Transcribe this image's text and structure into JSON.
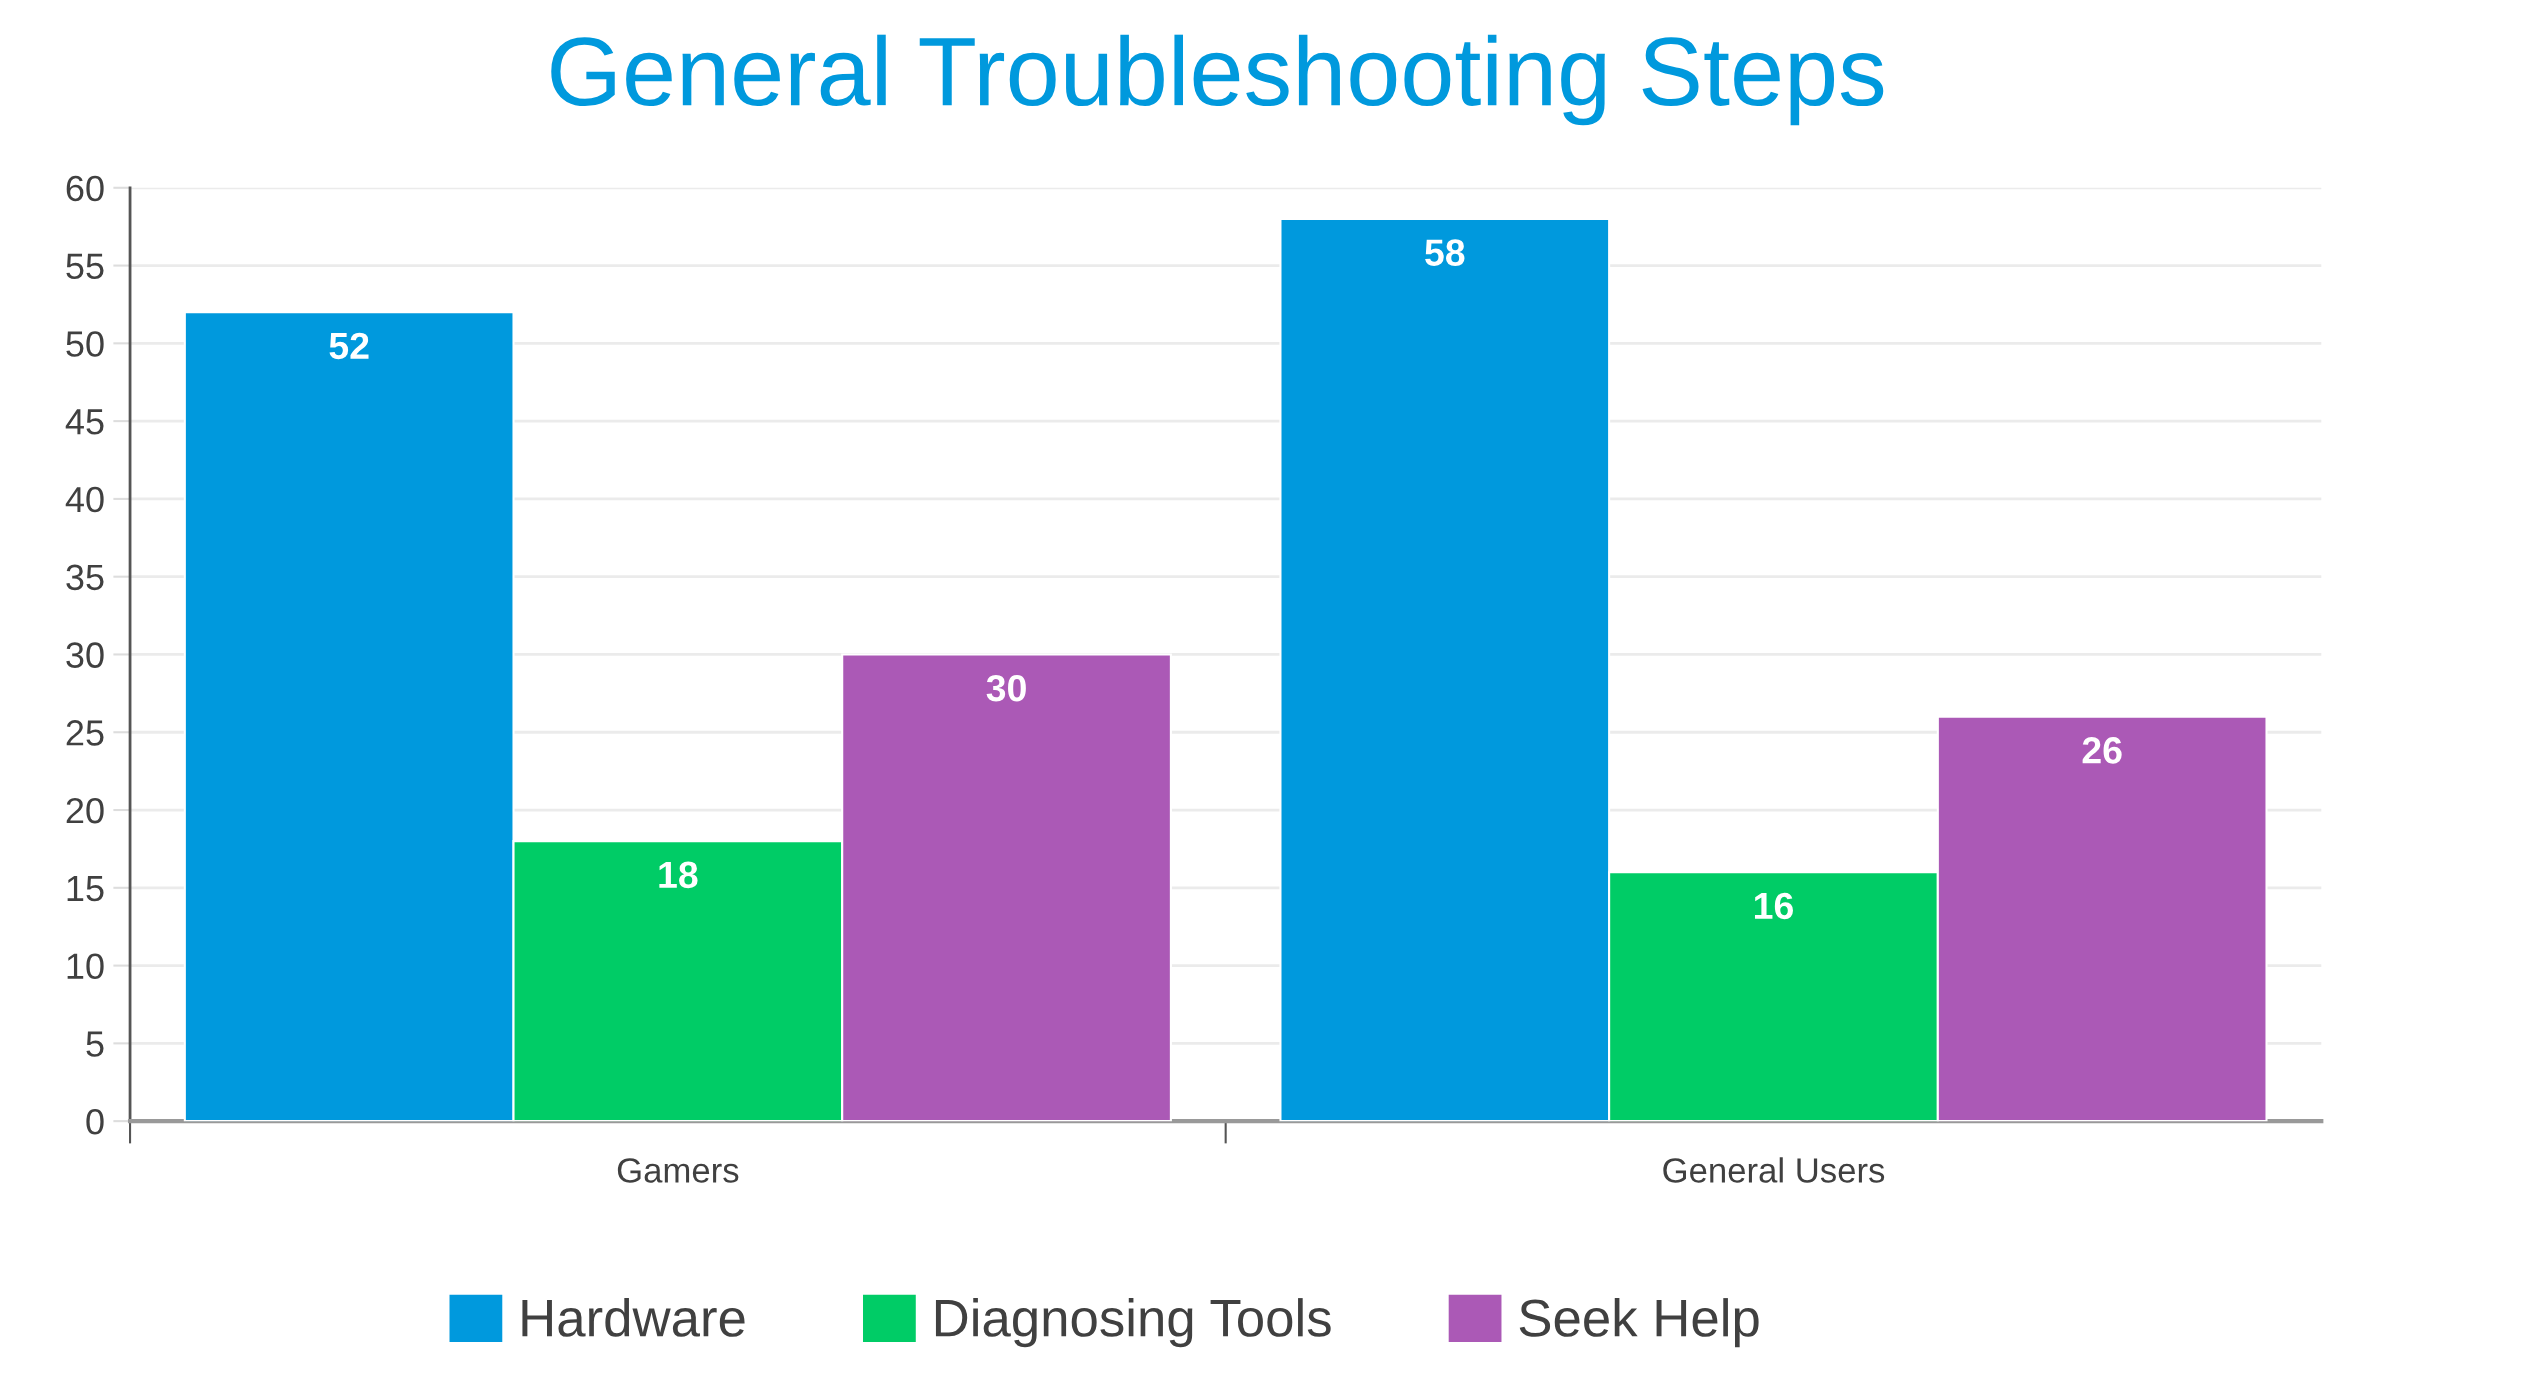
{
  "chart_data": {
    "type": "bar",
    "title": "General Troubleshooting Steps",
    "categories": [
      "Gamers",
      "General Users"
    ],
    "series": [
      {
        "name": "Hardware",
        "color": "#0099dd",
        "values": [
          52,
          58
        ]
      },
      {
        "name": "Diagnosing Tools",
        "color": "#00cc66",
        "values": [
          18,
          16
        ]
      },
      {
        "name": "Seek Help",
        "color": "#ab59b6",
        "values": [
          30,
          26
        ]
      }
    ],
    "ylim": [
      0,
      60
    ],
    "yticks": [
      0,
      5,
      10,
      15,
      20,
      25,
      30,
      35,
      40,
      45,
      50,
      55,
      60
    ],
    "grid": "y",
    "legend": "bottom",
    "data_labels": true
  }
}
